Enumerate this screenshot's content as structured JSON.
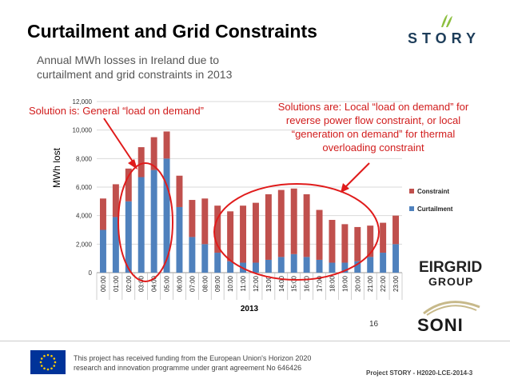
{
  "slide": {
    "title": "Curtailment and Grid Constraints",
    "subtitle": "Annual MWh losses in Ireland due to curtailment and grid constraints in 2013",
    "page_number": "16",
    "annotation_left": "Solution is: General “load on demand”",
    "annotation_right": "Solutions are: Local “load on demand” for reverse power flow constraint, or local “generation on demand” for thermal overloading constraint",
    "logos": {
      "story": "STORY",
      "eirgrid_line1": "EIRGRID",
      "eirgrid_line2": "GROUP",
      "soni": "SONI"
    },
    "footer": {
      "funding": "This project has received funding from the European Union's Horizon 2020 research and innovation programme under grant agreement No 646426",
      "project": "Project STORY - H2020-LCE-2014-3"
    },
    "colors": {
      "constraint": "#c0504d",
      "curtailment": "#4f81bd",
      "annotation": "#d11c1c"
    }
  },
  "chart_data": {
    "type": "bar",
    "stacked": true,
    "xlabel": "2013",
    "ylabel": "MWh lost",
    "ylim": [
      0,
      12000
    ],
    "yticks": [
      0,
      2000,
      4000,
      6000,
      8000,
      10000,
      12000
    ],
    "ytick_labels": [
      "0",
      "2,000",
      "4,000",
      "6,000",
      "8,000",
      "10,000",
      "12,000"
    ],
    "categories": [
      "00:00",
      "01:00",
      "02:00",
      "03:00",
      "04:00",
      "05:00",
      "06:00",
      "07:00",
      "08:00",
      "09:00",
      "10:00",
      "11:00",
      "12:00",
      "13:00",
      "14:00",
      "15:00",
      "16:00",
      "17:00",
      "18:00",
      "19:00",
      "20:00",
      "21:00",
      "22:00",
      "23:00"
    ],
    "series": [
      {
        "name": "Curtailment",
        "values": [
          3000,
          3900,
          5000,
          6700,
          7200,
          8000,
          4600,
          2500,
          2000,
          1400,
          800,
          700,
          700,
          900,
          1100,
          1300,
          1100,
          900,
          700,
          700,
          800,
          1100,
          1400,
          2000
        ]
      },
      {
        "name": "Constraint",
        "values": [
          2200,
          2300,
          2300,
          2100,
          2300,
          1900,
          2200,
          2600,
          3200,
          3300,
          3500,
          4000,
          4200,
          4600,
          4700,
          4600,
          4400,
          3500,
          3000,
          2700,
          2400,
          2200,
          2100,
          2000
        ]
      }
    ],
    "legend": [
      "Constraint",
      "Curtailment"
    ],
    "legend_position": "right"
  }
}
